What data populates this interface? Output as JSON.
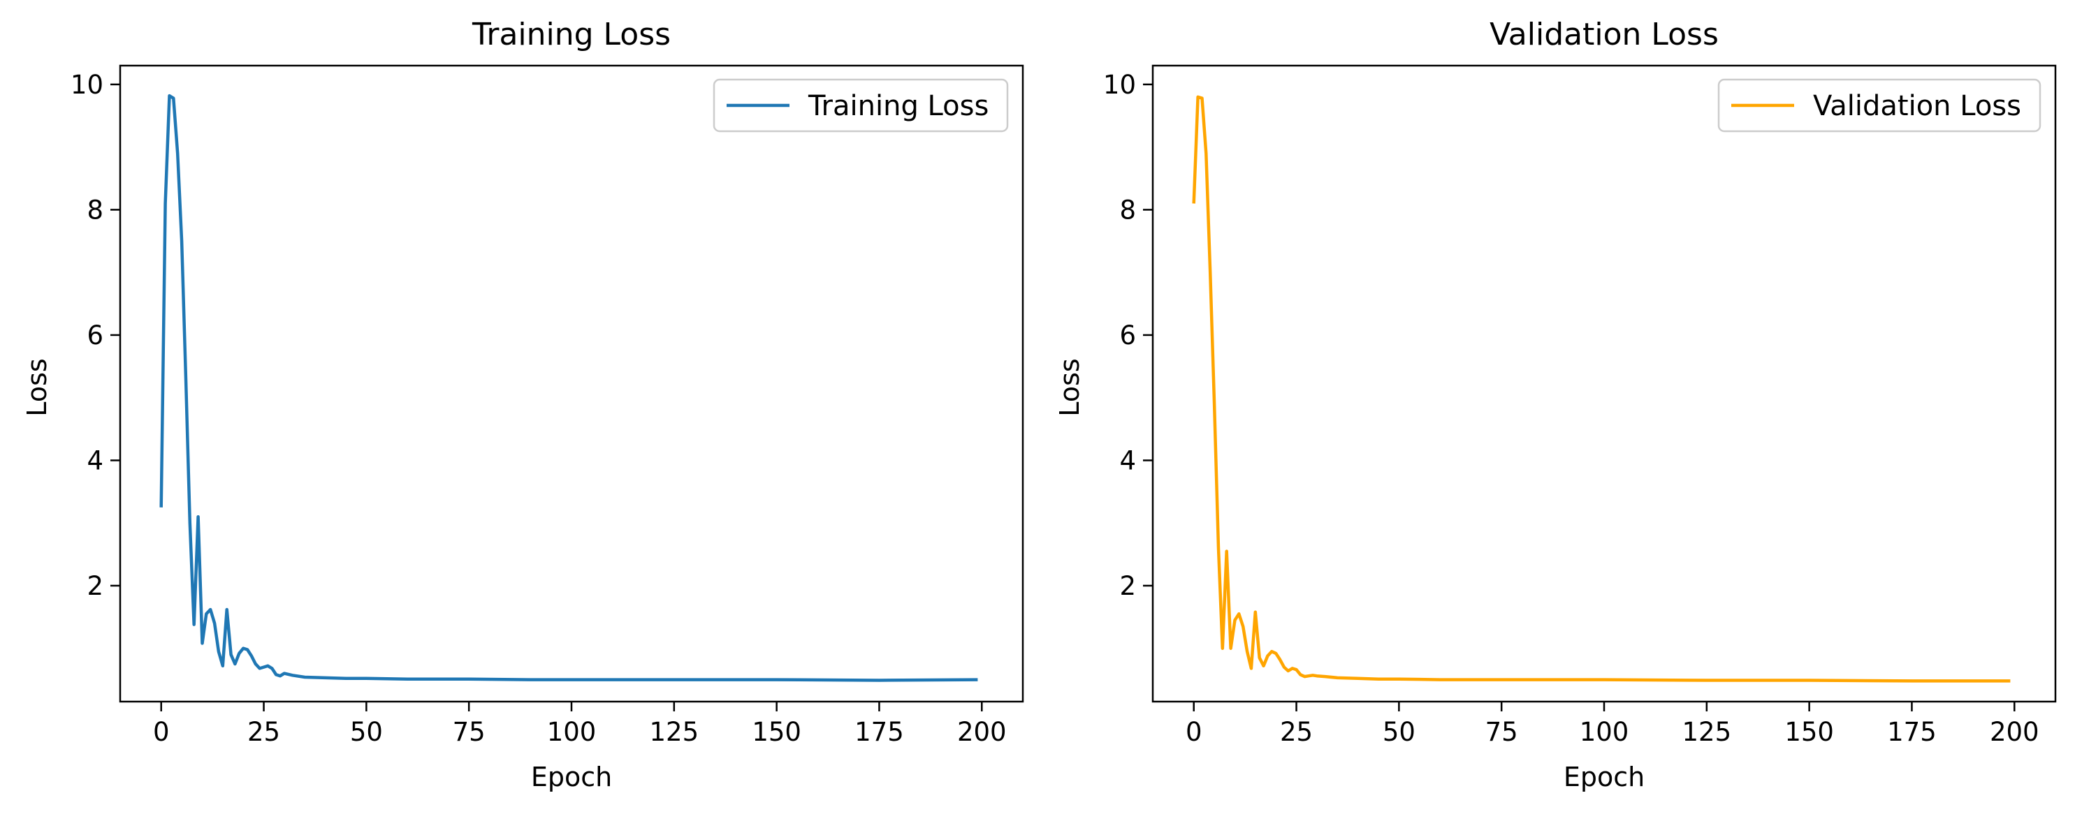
{
  "chart_data": [
    {
      "type": "line",
      "title": "Training Loss",
      "xlabel": "Epoch",
      "ylabel": "Loss",
      "xlim": [
        -10,
        210
      ],
      "ylim": [
        0.15,
        10.3
      ],
      "xticks": [
        0,
        25,
        50,
        75,
        100,
        125,
        150,
        175,
        200
      ],
      "xtick_labels": [
        "0",
        "25",
        "50",
        "75",
        "100",
        "125",
        "150",
        "175",
        "200"
      ],
      "yticks": [
        2,
        4,
        6,
        8,
        10
      ],
      "ytick_labels": [
        "2",
        "4",
        "6",
        "8",
        "10"
      ],
      "grid": false,
      "legend_position": "top-right",
      "series": [
        {
          "name": "Training Loss",
          "color": "#1f77b4",
          "x": [
            0,
            1,
            2,
            3,
            4,
            5,
            6,
            7,
            8,
            9,
            10,
            11,
            12,
            13,
            14,
            15,
            16,
            17,
            18,
            19,
            20,
            21,
            22,
            23,
            24,
            25,
            26,
            27,
            28,
            29,
            30,
            32,
            35,
            40,
            45,
            50,
            60,
            75,
            90,
            100,
            125,
            150,
            175,
            199
          ],
          "y": [
            3.25,
            8.1,
            9.82,
            9.78,
            8.9,
            7.5,
            5.3,
            3.0,
            1.38,
            3.1,
            1.08,
            1.55,
            1.62,
            1.4,
            0.95,
            0.72,
            1.62,
            0.9,
            0.75,
            0.92,
            1.0,
            0.98,
            0.88,
            0.75,
            0.68,
            0.7,
            0.72,
            0.68,
            0.58,
            0.56,
            0.6,
            0.57,
            0.54,
            0.53,
            0.52,
            0.52,
            0.51,
            0.51,
            0.5,
            0.5,
            0.5,
            0.5,
            0.49,
            0.5
          ]
        }
      ]
    },
    {
      "type": "line",
      "title": "Validation Loss",
      "xlabel": "Epoch",
      "ylabel": "Loss",
      "xlim": [
        -10,
        210
      ],
      "ylim": [
        0.15,
        10.3
      ],
      "xticks": [
        0,
        25,
        50,
        75,
        100,
        125,
        150,
        175,
        200
      ],
      "xtick_labels": [
        "0",
        "25",
        "50",
        "75",
        "100",
        "125",
        "150",
        "175",
        "200"
      ],
      "yticks": [
        2,
        4,
        6,
        8,
        10
      ],
      "ytick_labels": [
        "2",
        "4",
        "6",
        "8",
        "10"
      ],
      "grid": false,
      "legend_position": "top-right",
      "series": [
        {
          "name": "Validation Loss",
          "color": "#ffa500",
          "x": [
            0,
            1,
            2,
            3,
            4,
            5,
            6,
            7,
            8,
            9,
            10,
            11,
            12,
            13,
            14,
            15,
            16,
            17,
            18,
            19,
            20,
            21,
            22,
            23,
            24,
            25,
            26,
            27,
            28,
            29,
            30,
            32,
            35,
            40,
            45,
            50,
            60,
            75,
            90,
            100,
            125,
            150,
            175,
            199
          ],
          "y": [
            8.1,
            9.8,
            9.78,
            8.9,
            7.0,
            4.9,
            2.6,
            1.0,
            2.55,
            1.0,
            1.45,
            1.55,
            1.35,
            0.95,
            0.68,
            1.58,
            0.85,
            0.72,
            0.88,
            0.95,
            0.92,
            0.82,
            0.7,
            0.64,
            0.68,
            0.66,
            0.58,
            0.55,
            0.56,
            0.57,
            0.56,
            0.55,
            0.53,
            0.52,
            0.51,
            0.51,
            0.5,
            0.5,
            0.5,
            0.5,
            0.49,
            0.49,
            0.48,
            0.48
          ]
        }
      ]
    }
  ]
}
